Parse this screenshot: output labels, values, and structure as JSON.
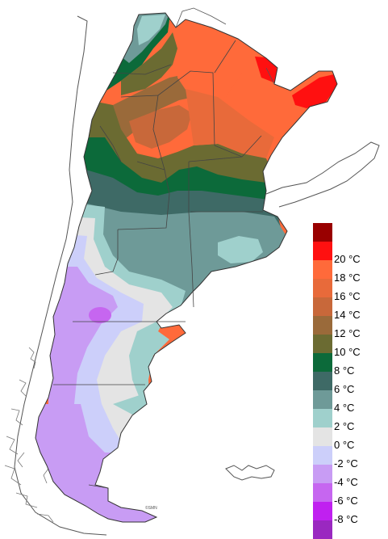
{
  "legend": {
    "items": [
      {
        "color": "#990000",
        "label": ""
      },
      {
        "color": "#ff1010",
        "label": "20 °C"
      },
      {
        "color": "#ff6a3a",
        "label": "18 °C"
      },
      {
        "color": "#e86a3a",
        "label": "16 °C"
      },
      {
        "color": "#c8683a",
        "label": "14 °C"
      },
      {
        "color": "#9a6a3a",
        "label": "12 °C"
      },
      {
        "color": "#6b6b32",
        "label": "10 °C"
      },
      {
        "color": "#0c6a3a",
        "label": "8 °C"
      },
      {
        "color": "#3e6a66",
        "label": "6 °C"
      },
      {
        "color": "#6e9a98",
        "label": "4 °C"
      },
      {
        "color": "#9fd0cc",
        "label": "2 °C"
      },
      {
        "color": "#e4e4e4",
        "label": "0 °C"
      },
      {
        "color": "#cccffa",
        "label": "-2 °C"
      },
      {
        "color": "#c89cf4",
        "label": "-4 °C"
      },
      {
        "color": "#c666f0",
        "label": "-6 °C"
      },
      {
        "color": "#c020f0",
        "label": "-8 °C"
      },
      {
        "color": "#9a28c0",
        "label": ""
      }
    ]
  },
  "map": {
    "zone_colors": {
      "red": "#ff1010",
      "orange_light": "#ff6a3a",
      "orange": "#e86a3a",
      "orange_dark": "#c8683a",
      "brown": "#9a6a3a",
      "olive": "#6b6b32",
      "green": "#0c6a3a",
      "teal_dark": "#3e6a66",
      "teal": "#6e9a98",
      "teal_light": "#9fd0cc",
      "white_grey": "#e4e4e4",
      "lavender": "#cccffa",
      "violet_light": "#c89cf4",
      "violet": "#c666f0"
    }
  }
}
